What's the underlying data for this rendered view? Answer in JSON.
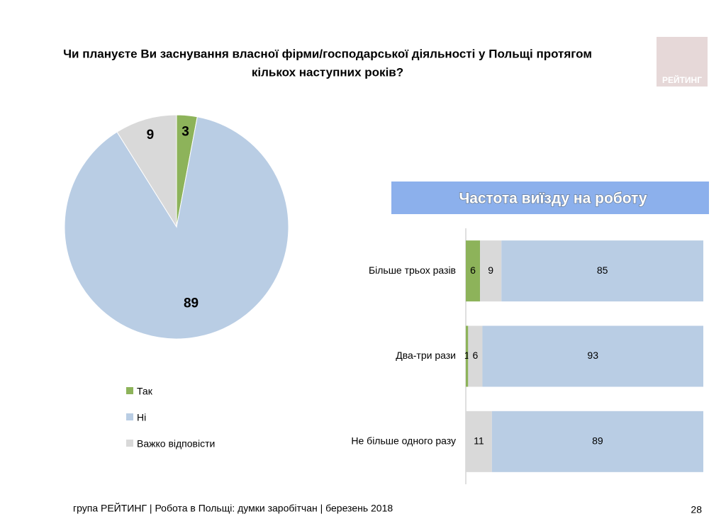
{
  "title_lines": [
    "Чи плануєте Ви заснування власної фірми/господарської діяльності у Польщі протягом",
    "кількох наступних років?"
  ],
  "logo": "РЕЙТИНГ",
  "footer": "група РЕЙТИНГ  | Робота в Польщі: думки заробітчан  |  березень 2018",
  "page_number": "28",
  "chart_data": [
    {
      "type": "pie",
      "categories": [
        "Так",
        "Ні",
        "Важко відповісти"
      ],
      "values": [
        3,
        89,
        9
      ],
      "colors": [
        "#8db35a",
        "#b9cde4",
        "#d9d9d9"
      ],
      "legend": "bottom-left"
    },
    {
      "type": "stacked-bar-horizontal",
      "title": "Частота виїзду на роботу",
      "categories": [
        "Більше трьох разів",
        "Два-три рази",
        "Не більше одного разу"
      ],
      "series": [
        {
          "color": "#8db35a",
          "values": [
            6,
            1,
            null
          ]
        },
        {
          "color": "#d9d9d9",
          "values": [
            9,
            6,
            11
          ]
        },
        {
          "color": "#b9cde4",
          "values": [
            85,
            93,
            89
          ]
        }
      ],
      "xlim": [
        0,
        100
      ]
    }
  ]
}
